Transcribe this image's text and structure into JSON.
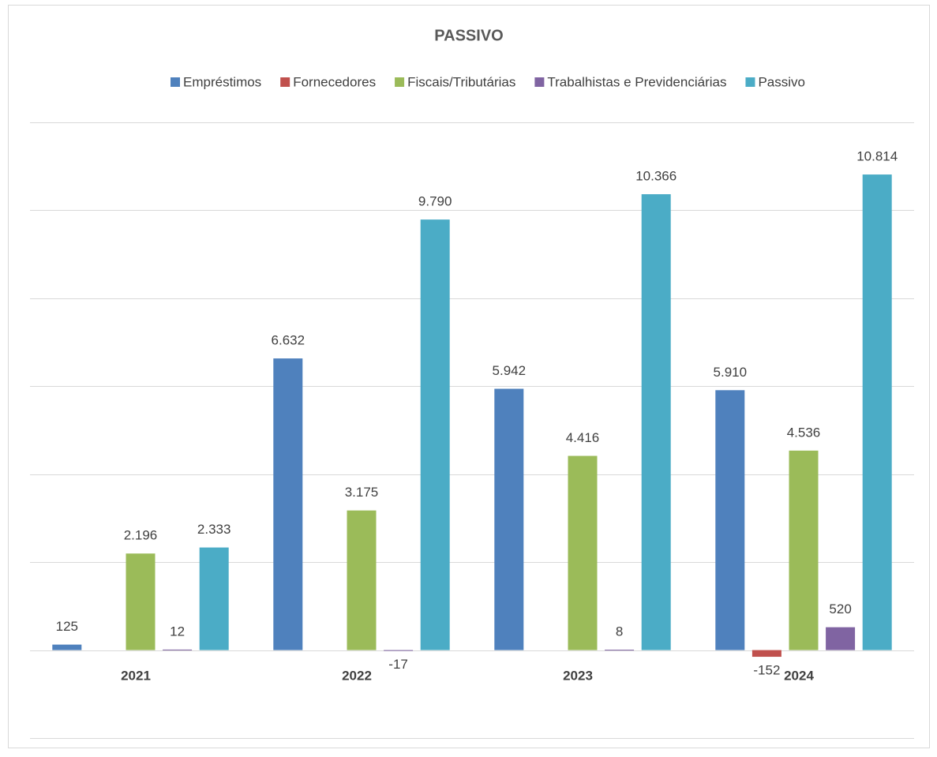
{
  "chart_data": {
    "type": "bar",
    "title": "PASSIVO",
    "categories": [
      "2021",
      "2022",
      "2023",
      "2024"
    ],
    "series": [
      {
        "name": "Empréstimos",
        "color": "#4f81bd",
        "values": [
          125,
          6632,
          5942,
          5910
        ],
        "value_labels": [
          "125",
          "6.632",
          "5.942",
          "5.910"
        ]
      },
      {
        "name": "Fornecedores",
        "color": "#c0504d",
        "values": [
          null,
          null,
          null,
          -152
        ],
        "value_labels": [
          null,
          null,
          null,
          "-152"
        ]
      },
      {
        "name": "Fiscais/Tributárias",
        "color": "#9bbb59",
        "values": [
          2196,
          3175,
          4416,
          4536
        ],
        "value_labels": [
          "2.196",
          "3.175",
          "4.416",
          "4.536"
        ]
      },
      {
        "name": "Trabalhistas e Previdenciárias",
        "color": "#8064a2",
        "values": [
          12,
          -17,
          8,
          520
        ],
        "value_labels": [
          "12",
          "-17",
          "8",
          "520"
        ]
      },
      {
        "name": "Passivo",
        "color": "#4bacc6",
        "values": [
          2333,
          9790,
          10366,
          10814
        ],
        "value_labels": [
          "2.333",
          "9.790",
          "10.366",
          "10.814"
        ]
      }
    ],
    "ylim": [
      -2000,
      12000
    ],
    "yticks": [
      -2000,
      0,
      2000,
      4000,
      6000,
      8000,
      10000,
      12000
    ],
    "grid": true,
    "legend": "top"
  }
}
